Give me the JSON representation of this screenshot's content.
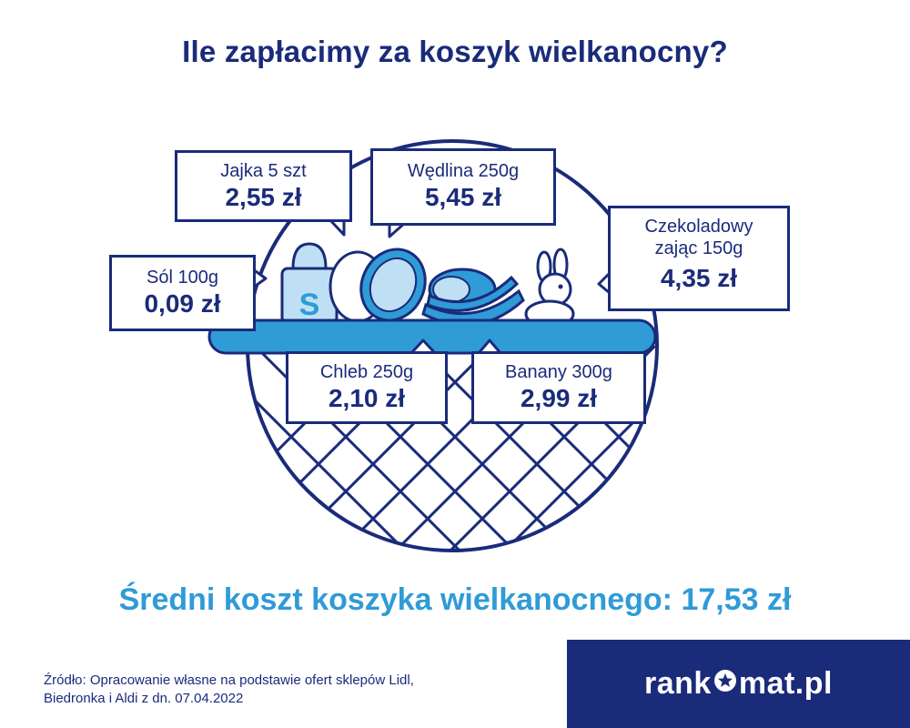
{
  "title": "Ile zapłacimy za koszyk wielkanocny?",
  "items": [
    {
      "label": "Jajka 5 szt",
      "price": "2,55 zł"
    },
    {
      "label": "Wędlina 250g",
      "price": "5,45 zł"
    },
    {
      "label": "Sól 100g",
      "price": "0,09 zł"
    },
    {
      "label_line1": "Czekoladowy",
      "label_line2": "zając 150g",
      "price": "4,35 zł"
    },
    {
      "label": "Chleb 250g",
      "price": "2,10 zł"
    },
    {
      "label": "Banany 300g",
      "price": "2,99 zł"
    }
  ],
  "summary": "Średni koszt koszyka wielkanocnego: 17,53 zł",
  "source": {
    "line1": "Źródło: Opracowanie własne na podstawie ofert sklepów Lidl,",
    "line2": "Biedronka i Aldi z dn. 07.04.2022"
  },
  "brand": {
    "part1": "rank",
    "part2": "mat.pl"
  },
  "colors": {
    "navy": "#1a2b7a",
    "blue": "#2f9bd7",
    "light_blue": "#bfe0f4",
    "white": "#ffffff"
  }
}
